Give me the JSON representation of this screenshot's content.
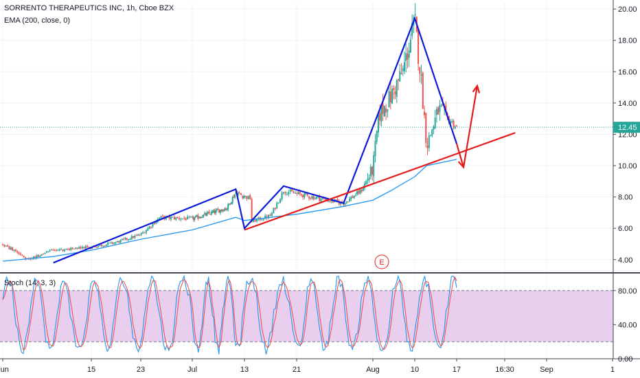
{
  "header": {
    "title": "SORRENTO THERAPEUTICS INC, 1h, Cboe BZX",
    "indicator": "EMA (200, close, 0)"
  },
  "stoch": {
    "label": "Stoch (14, 3, 3)",
    "upper": 80,
    "lower": 20
  },
  "colors": {
    "up": "#26a69a",
    "down": "#ef5350",
    "ema": "#2196f3",
    "pattern": "#0b1ad6",
    "trend": "#e31b1b",
    "price_line": "#26a69a",
    "stoch_k": "#2196f3",
    "stoch_d": "#ef5350",
    "stoch_band": "#e1bee7"
  },
  "earnings_marker": "E",
  "chart_data": [
    {
      "type": "candlestick",
      "title": "SORRENTO THERAPEUTICS INC, 1h, Cboe BZX",
      "ylim": [
        3.2,
        20.4
      ],
      "y_ticks": [
        4,
        6,
        8,
        10,
        12,
        14,
        16,
        18,
        20
      ],
      "y_tick_labels": [
        "4.00",
        "6.00",
        "8.00",
        "10.00",
        "12.00",
        "14.00",
        "16.00",
        "18.00",
        "20.00"
      ],
      "x_tick_labels": [
        "Jun",
        "15",
        "23",
        "Jul",
        "13",
        "21",
        "Aug",
        "10",
        "17",
        "16:30",
        "Sep",
        "1"
      ],
      "last_price": 12.45,
      "last_price_label": "12.45",
      "grid": true,
      "ohlc_anchors": {
        "x": [
          "Jun",
          "Jun 5",
          "Jun 9",
          "15",
          "Jun 19",
          "23",
          "Jun 26",
          "Jul",
          "Jul 9",
          "Jul 11",
          "Jul 14",
          "13",
          "Jul 17",
          "Jul 19",
          "21",
          "Jul 29",
          "Aug 1",
          "Aug",
          "Aug 4",
          "Aug 6",
          "Aug 8",
          "Aug 10",
          "Aug 11",
          "Aug 12",
          "Aug 14",
          "17"
        ],
        "close": [
          5.0,
          4.0,
          4.6,
          4.8,
          5.1,
          5.6,
          6.7,
          6.6,
          7.3,
          8.3,
          7.9,
          6.3,
          6.8,
          8.4,
          8.2,
          7.6,
          8.4,
          9.8,
          13.2,
          14.4,
          16.0,
          19.2,
          15.8,
          11.3,
          13.6,
          12.45
        ]
      },
      "series": [
        {
          "name": "EMA (200, close, 0)",
          "x": [
            "Jun",
            "Jun 9",
            "15",
            "23",
            "Jul",
            "Jul 11",
            "13",
            "21",
            "Jul 29",
            "Aug",
            "Aug 6",
            "Aug 10",
            "Aug 12",
            "17"
          ],
          "values": [
            3.9,
            4.2,
            4.6,
            5.3,
            5.9,
            6.7,
            6.5,
            6.9,
            7.4,
            7.8,
            8.4,
            9.3,
            10.0,
            10.4
          ]
        }
      ],
      "annotations": [
        {
          "type": "polyline",
          "color": "pattern",
          "points": [
            [
              "Jun 9",
              3.8
            ],
            [
              "Jul 11",
              8.5
            ],
            [
              "13",
              6.0
            ],
            [
              "Jul 19",
              8.7
            ],
            [
              "Jul 29",
              7.6
            ],
            [
              "Aug 10",
              19.4
            ],
            [
              "17",
              11.4
            ]
          ]
        },
        {
          "type": "line",
          "color": "trend",
          "points": [
            [
              "13",
              5.9
            ],
            [
              "Aug 26",
              12.1
            ]
          ]
        },
        {
          "type": "arrow",
          "color": "trend",
          "points": [
            [
              "17",
              11.4
            ],
            [
              "Aug 18",
              9.9
            ],
            [
              "Aug 20",
              15.1
            ]
          ]
        }
      ]
    },
    {
      "type": "line",
      "title": "Stoch (14, 3, 3)",
      "ylim": [
        0,
        100
      ],
      "y_ticks": [
        0,
        40,
        80
      ],
      "y_tick_labels": [
        "0.00",
        "40.00",
        "80.00"
      ],
      "bands": [
        20,
        80
      ]
    }
  ]
}
